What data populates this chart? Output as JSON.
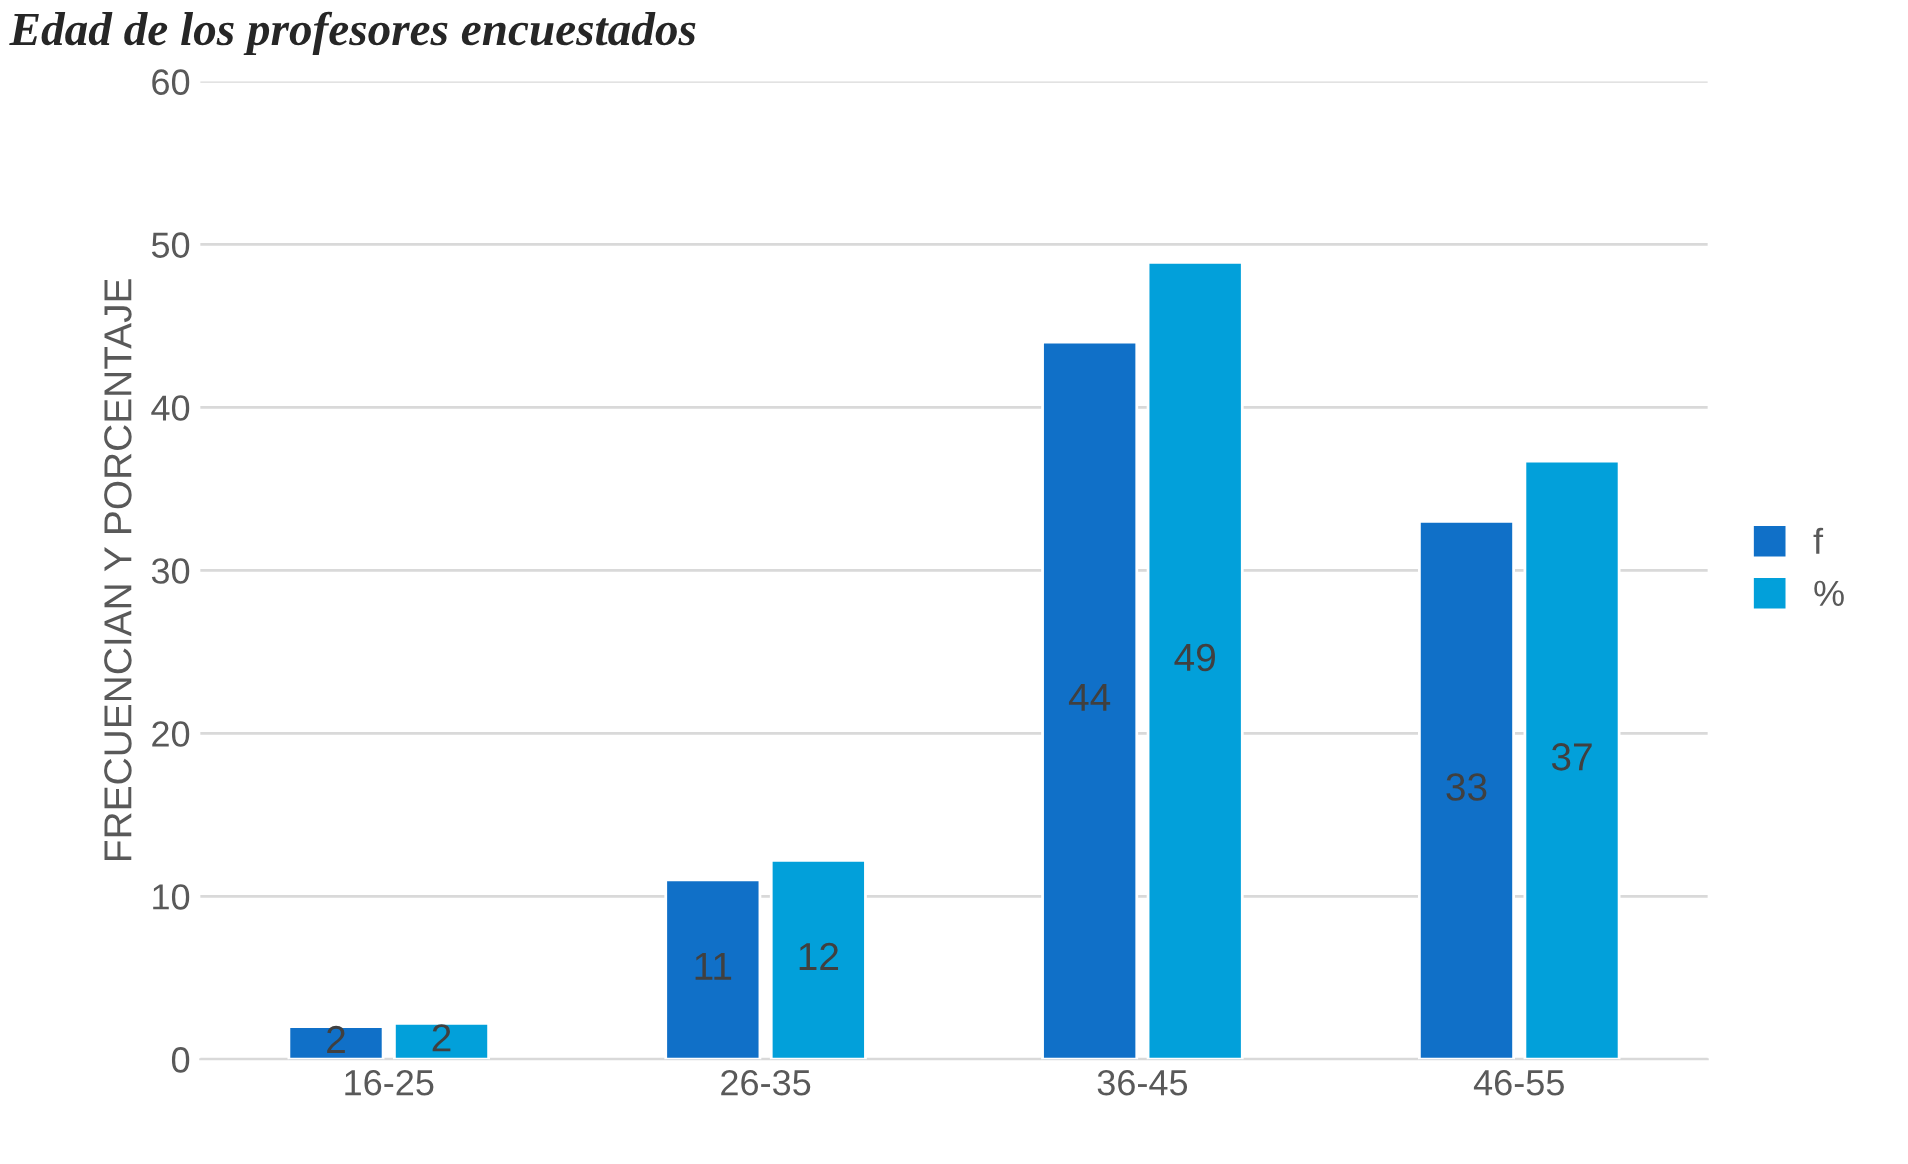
{
  "chart_data": {
    "type": "bar",
    "title": "Edad de los profesores encuestados",
    "ylabel": "FRECUENCIAN Y PORCENTAJE",
    "categories": [
      "16-25",
      "26-35",
      "36-45",
      "46-55"
    ],
    "series": [
      {
        "name": "f",
        "color": "#1070c8",
        "values": [
          2,
          11,
          44,
          33
        ],
        "value_labels": [
          "2",
          "11",
          "44",
          "33"
        ]
      },
      {
        "name": "%",
        "color": "#02a0da",
        "values": [
          2.2,
          12.2,
          48.9,
          36.7
        ],
        "value_labels": [
          "2",
          "12",
          "49",
          "37"
        ]
      }
    ],
    "ylim": [
      0,
      60
    ],
    "yticks": [
      0,
      10,
      20,
      30,
      40,
      50,
      60
    ],
    "grid": "y",
    "legend": "right"
  }
}
